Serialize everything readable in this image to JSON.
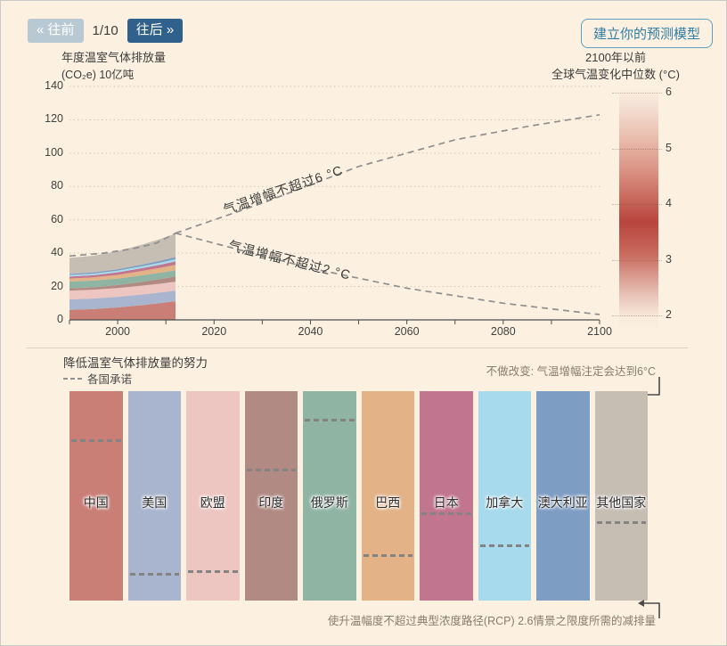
{
  "nav": {
    "prev_label": "« 往前",
    "step_indicator": "1/10",
    "next_label": "往后 »",
    "build_model_label": "建立你的预测模型"
  },
  "chart": {
    "y_axis_title_line1": "年度温室气体排放量",
    "y_axis_title_line2": "(CO₂e) 10亿吨",
    "line_label_6c": "气温增幅不超过6 °C",
    "line_label_2c": "气温增幅不超过2 °C"
  },
  "chart_data": {
    "type": "area",
    "title": "年度温室气体排放量 (CO₂e) 10亿吨",
    "x": [
      1990,
      1995,
      2000,
      2005,
      2009,
      2012
    ],
    "xlim": [
      1990,
      2100
    ],
    "ylim": [
      0,
      140
    ],
    "x_ticks": [
      2000,
      2020,
      2040,
      2060,
      2080,
      2100
    ],
    "x_minor_ticks": [
      1990,
      2010,
      2030,
      2050,
      2070,
      2090
    ],
    "y_ticks": [
      0,
      20,
      40,
      60,
      80,
      100,
      120,
      140
    ],
    "grid": true,
    "series": [
      {
        "name": "中国",
        "color": "#c97e76",
        "values": [
          6.0,
          6.5,
          7.5,
          8.8,
          10.1,
          11.2
        ]
      },
      {
        "name": "美国",
        "color": "#a9b4ce",
        "values": [
          6.3,
          6.3,
          6.3,
          6.4,
          6.4,
          6.4
        ]
      },
      {
        "name": "欧盟",
        "color": "#edc5c1",
        "values": [
          5.3,
          5.3,
          5.3,
          5.3,
          5.3,
          5.3
        ]
      },
      {
        "name": "印度",
        "color": "#b08a83",
        "values": [
          1.3,
          1.5,
          1.8,
          2.3,
          2.8,
          3.2
        ]
      },
      {
        "name": "俄罗斯",
        "color": "#8fb4a4",
        "values": [
          4.1,
          4.0,
          3.9,
          3.9,
          3.8,
          3.7
        ]
      },
      {
        "name": "巴西",
        "color": "#e3b286",
        "values": [
          1.8,
          1.9,
          2.2,
          2.6,
          2.9,
          3.2
        ]
      },
      {
        "name": "日本",
        "color": "#c2758f",
        "values": [
          1.2,
          1.3,
          1.5,
          1.7,
          1.9,
          2.1
        ]
      },
      {
        "name": "加拿大",
        "color": "#a6daec",
        "values": [
          0.9,
          0.94,
          1.0,
          1.1,
          1.2,
          1.3
        ]
      },
      {
        "name": "澳大利亚",
        "color": "#7e9dc3",
        "values": [
          0.7,
          0.76,
          0.87,
          1.0,
          1.17,
          1.3
        ]
      },
      {
        "name": "其他国家",
        "color": "#c6bdb3",
        "values": [
          9.6,
          10.0,
          10.9,
          12.0,
          13.1,
          14.0
        ]
      }
    ],
    "projection_lines": [
      {
        "name": "pledges-history",
        "points": [
          [
            1990,
            38.3
          ],
          [
            1997,
            40.0
          ],
          [
            2003,
            42.6
          ],
          [
            2008,
            46.0
          ],
          [
            2012,
            52.0
          ]
        ]
      },
      {
        "name": "to-6c",
        "label": "气温增幅不超过6 °C",
        "points": [
          [
            2012,
            52
          ],
          [
            2030,
            70
          ],
          [
            2050,
            92
          ],
          [
            2070,
            108
          ],
          [
            2085,
            116
          ],
          [
            2100,
            123
          ]
        ]
      },
      {
        "name": "to-2c",
        "label": "气温增幅不超过2 °C",
        "points": [
          [
            2012,
            52
          ],
          [
            2020,
            46
          ],
          [
            2040,
            31
          ],
          [
            2060,
            19
          ],
          [
            2080,
            10
          ],
          [
            2100,
            3.2
          ]
        ]
      }
    ],
    "temp_scale": {
      "title_line1": "2100年以前",
      "title_line2": "全球气温变化中位数 (°C)",
      "ticks": [
        6,
        5,
        4,
        3,
        2
      ]
    }
  },
  "bottom": {
    "title": "降低温室气体排放量的努力",
    "legend_label": "各国承诺",
    "no_change_note": "不做改变: 气温增幅注定会达到6°C",
    "rcp_note": "使升温幅度不超过典型浓度路径(RCP) 2.6情景之限度所需的减排量",
    "bars": [
      {
        "label": "中国",
        "color": "#c97e76",
        "commitment_frac": 0.23
      },
      {
        "label": "美国",
        "color": "#a9b4ce",
        "commitment_frac": 0.87
      },
      {
        "label": "欧盟",
        "color": "#edc5c1",
        "commitment_frac": 0.855
      },
      {
        "label": "印度",
        "color": "#b08a83",
        "commitment_frac": 0.37
      },
      {
        "label": "俄罗斯",
        "color": "#8fb4a4",
        "commitment_frac": 0.13
      },
      {
        "label": "巴西",
        "color": "#e3b286",
        "commitment_frac": 0.78
      },
      {
        "label": "日本",
        "color": "#c2758f",
        "commitment_frac": 0.58
      },
      {
        "label": "加拿大",
        "color": "#a6daec",
        "commitment_frac": 0.73
      },
      {
        "label": "澳大利亚",
        "color": "#7e9dc3",
        "commitment_frac": null
      },
      {
        "label": "其他国家",
        "color": "#c6bdb3",
        "commitment_frac": 0.62
      }
    ]
  },
  "colors": {
    "background": "#fcf1e0",
    "next_button": "#30608c",
    "prev_button": "#b9c9d4",
    "build_button_border": "#5f9dc0",
    "build_button_text": "#2f7ca6",
    "dashed_line": "#8f8f8f",
    "gradient_peak": "#b8453e",
    "annotation_text": "#877c6c"
  }
}
